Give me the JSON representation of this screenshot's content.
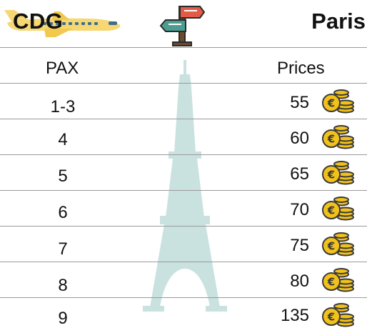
{
  "header": {
    "from": "CDG",
    "to": "Paris"
  },
  "table": {
    "columns": {
      "pax": "PAX",
      "prices": "Prices"
    },
    "rows": [
      {
        "pax": "1-3",
        "price": "55"
      },
      {
        "pax": "4",
        "price": "60"
      },
      {
        "pax": "5",
        "price": "65"
      },
      {
        "pax": "6",
        "price": "70"
      },
      {
        "pax": "7",
        "price": "75"
      },
      {
        "pax": "8",
        "price": "80"
      },
      {
        "pax": "9",
        "price": "135"
      }
    ]
  },
  "icons": {
    "plane": "airplane-icon",
    "signpost": "signpost-icon",
    "tower": "eiffel-tower-icon",
    "coins": "euro-coins-icon"
  },
  "colors": {
    "plane": "#f7d774",
    "tower": "#5fa8a0",
    "coin_gold": "#f2c21a",
    "coin_outline": "#3a3a3a",
    "sign_red": "#e35a46",
    "sign_teal": "#4c9d8f"
  }
}
